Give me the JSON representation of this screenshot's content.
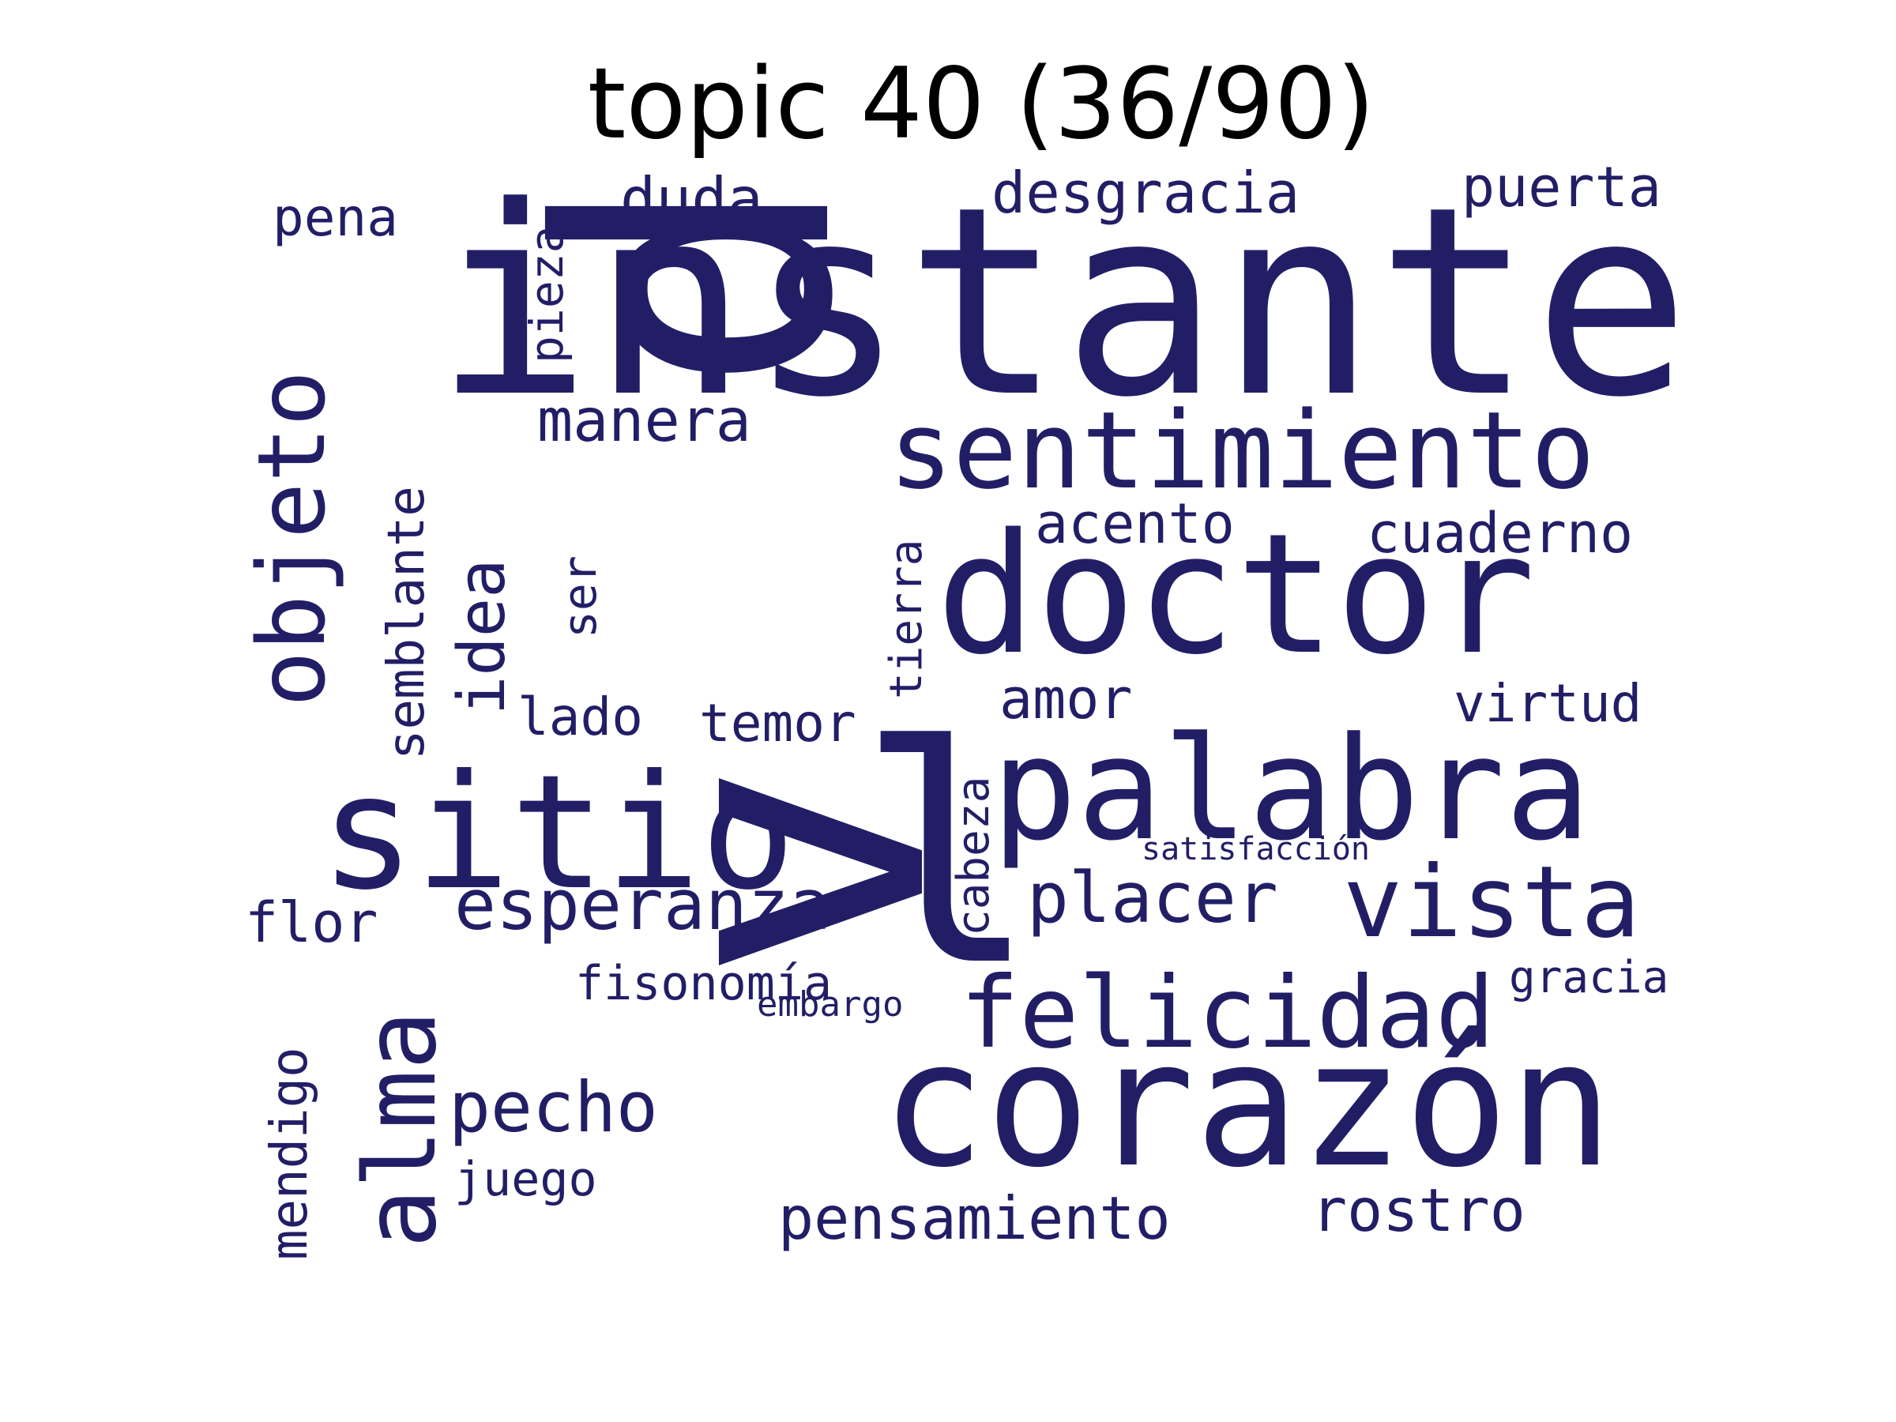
{
  "title": "topic 40 (36/90)",
  "word_color": "#221e66",
  "title_color": "#000000",
  "words": [
    {
      "text": "instante",
      "weight": 1.0
    },
    {
      "text": "d",
      "weight": 1.0
    },
    {
      "text": "v",
      "weight": 1.0
    },
    {
      "text": "l",
      "weight": 0.9
    },
    {
      "text": "corazón",
      "weight": 0.75
    },
    {
      "text": "doctor",
      "weight": 0.7
    },
    {
      "text": "palabra",
      "weight": 0.65
    },
    {
      "text": "sitio",
      "weight": 0.62
    },
    {
      "text": "sentimiento",
      "weight": 0.5
    },
    {
      "text": "objeto",
      "weight": 0.48
    },
    {
      "text": "alma",
      "weight": 0.48
    },
    {
      "text": "vista",
      "weight": 0.45
    },
    {
      "text": "felicidad",
      "weight": 0.45
    },
    {
      "text": "pecho",
      "weight": 0.35
    },
    {
      "text": "esperanza",
      "weight": 0.33
    },
    {
      "text": "placer",
      "weight": 0.33
    },
    {
      "text": "idea",
      "weight": 0.33
    },
    {
      "text": "pensamiento",
      "weight": 0.3
    },
    {
      "text": "rostro",
      "weight": 0.3
    },
    {
      "text": "manera",
      "weight": 0.3
    },
    {
      "text": "duda",
      "weight": 0.3
    },
    {
      "text": "desgracia",
      "weight": 0.28
    },
    {
      "text": "semblante",
      "weight": 0.26
    },
    {
      "text": "mendigo",
      "weight": 0.26
    },
    {
      "text": "puerta",
      "weight": 0.26
    },
    {
      "text": "acento",
      "weight": 0.26
    },
    {
      "text": "cuaderno",
      "weight": 0.26
    },
    {
      "text": "flor",
      "weight": 0.26
    },
    {
      "text": "amor",
      "weight": 0.26
    },
    {
      "text": "virtud",
      "weight": 0.24
    },
    {
      "text": "temor",
      "weight": 0.24
    },
    {
      "text": "lado",
      "weight": 0.24
    },
    {
      "text": "pena",
      "weight": 0.24
    },
    {
      "text": "pieza",
      "weight": 0.22
    },
    {
      "text": "ser",
      "weight": 0.22
    },
    {
      "text": "tierra",
      "weight": 0.22
    },
    {
      "text": "cabeza",
      "weight": 0.22
    },
    {
      "text": "fisonomía",
      "weight": 0.22
    },
    {
      "text": "juego",
      "weight": 0.22
    },
    {
      "text": "gracia",
      "weight": 0.2
    },
    {
      "text": "embargo",
      "weight": 0.16
    },
    {
      "text": "satisfacción",
      "weight": 0.14
    }
  ]
}
